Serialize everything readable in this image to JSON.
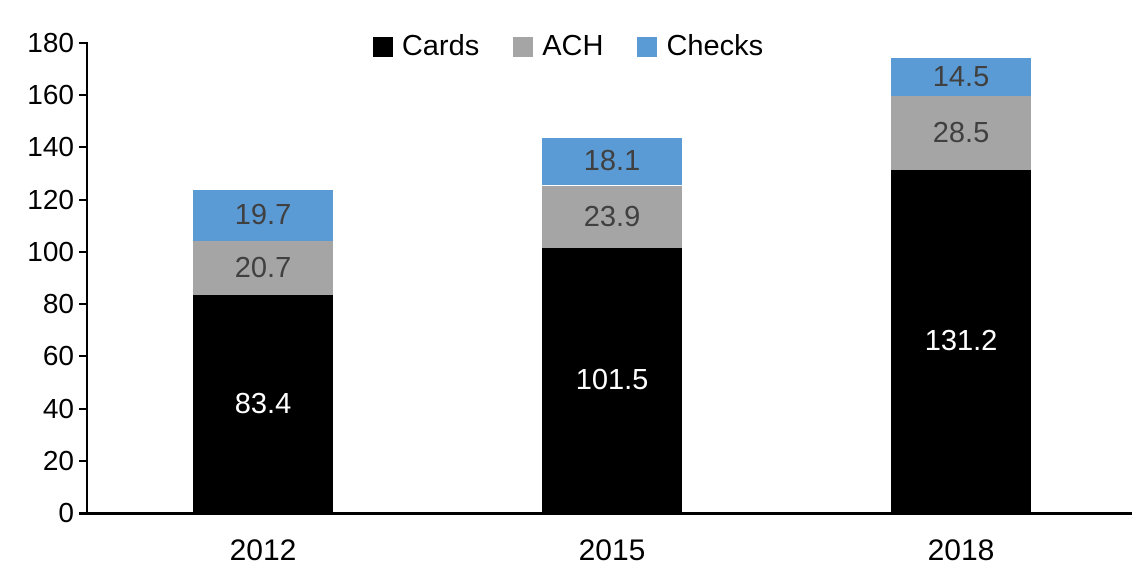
{
  "chart_data": {
    "type": "bar",
    "stacked": true,
    "title": "",
    "categories": [
      "2012",
      "2015",
      "2018"
    ],
    "series": [
      {
        "name": "Cards",
        "color": "#000000",
        "label_color": "#FFFFFF",
        "values": [
          83.4,
          101.5,
          131.2
        ]
      },
      {
        "name": "ACH",
        "color": "#A5A5A5",
        "label_color": "#404040",
        "values": [
          20.7,
          23.9,
          28.5
        ]
      },
      {
        "name": "Checks",
        "color": "#5B9BD5",
        "label_color": "#404040",
        "values": [
          19.7,
          18.1,
          14.5
        ]
      }
    ],
    "y_axis": {
      "min": 0,
      "max": 180,
      "step": 20,
      "ticks": [
        0,
        20,
        40,
        60,
        80,
        100,
        120,
        140,
        160,
        180
      ]
    },
    "legend": {
      "position": "top"
    },
    "grid": false,
    "axis_color": "#000000",
    "background": "#FFFFFF"
  }
}
